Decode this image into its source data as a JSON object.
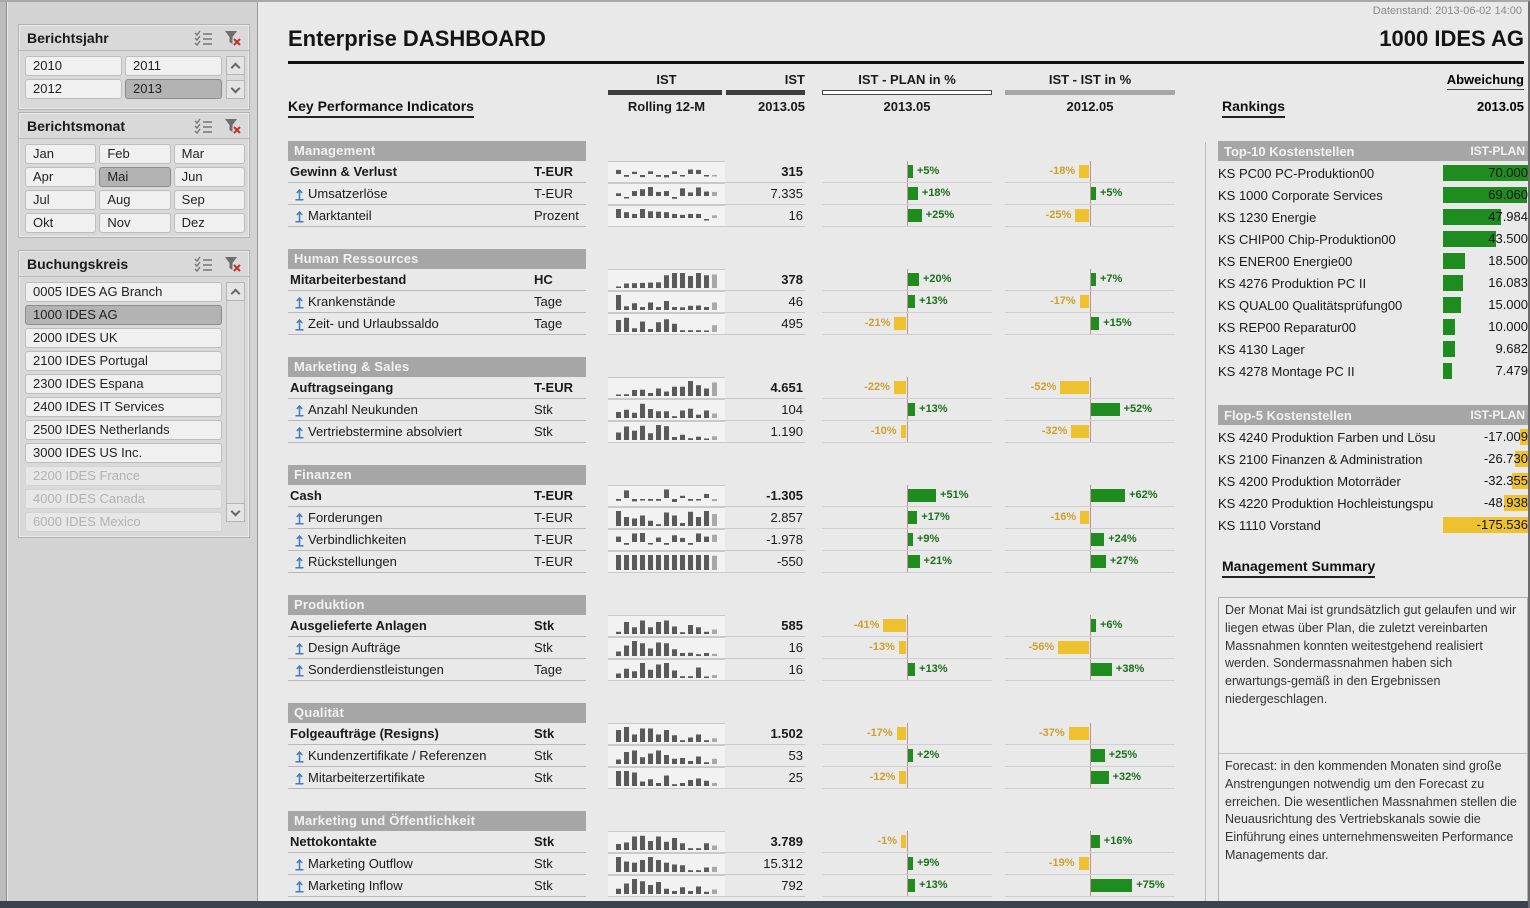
{
  "meta": {
    "datenstand": "Datenstand: 2013-06-02 14:00",
    "title": "Enterprise DASHBOARD",
    "company": "1000 IDES AG"
  },
  "colors": {
    "positive_green": "#1e8c1e",
    "negative_amber": "#eec22f",
    "section_gray": "#a6a6a6",
    "spark_dark": "#5a5a5a",
    "spark_light": "#a8a8a8"
  },
  "slicers": {
    "berichtsjahr": {
      "title": "Berichtsjahr",
      "items": [
        {
          "label": "2010",
          "selected": false,
          "disabled": false
        },
        {
          "label": "2011",
          "selected": false,
          "disabled": false
        },
        {
          "label": "2012",
          "selected": false,
          "disabled": false
        },
        {
          "label": "2013",
          "selected": true,
          "disabled": false
        }
      ]
    },
    "berichtsmonat": {
      "title": "Berichtsmonat",
      "items": [
        {
          "label": "Jan",
          "selected": false,
          "disabled": false
        },
        {
          "label": "Feb",
          "selected": false,
          "disabled": false
        },
        {
          "label": "Mar",
          "selected": false,
          "disabled": false
        },
        {
          "label": "Apr",
          "selected": false,
          "disabled": false
        },
        {
          "label": "Mai",
          "selected": true,
          "disabled": false
        },
        {
          "label": "Jun",
          "selected": false,
          "disabled": false
        },
        {
          "label": "Jul",
          "selected": false,
          "disabled": false
        },
        {
          "label": "Aug",
          "selected": false,
          "disabled": false
        },
        {
          "label": "Sep",
          "selected": false,
          "disabled": false
        },
        {
          "label": "Okt",
          "selected": false,
          "disabled": false
        },
        {
          "label": "Nov",
          "selected": false,
          "disabled": false
        },
        {
          "label": "Dez",
          "selected": false,
          "disabled": false
        }
      ]
    },
    "buchungskreis": {
      "title": "Buchungskreis",
      "items": [
        {
          "label": "0005 IDES AG Branch",
          "selected": false,
          "disabled": false
        },
        {
          "label": "1000 IDES AG",
          "selected": true,
          "disabled": false
        },
        {
          "label": "2000 IDES UK",
          "selected": false,
          "disabled": false
        },
        {
          "label": "2100 IDES Portugal",
          "selected": false,
          "disabled": false
        },
        {
          "label": "2300 IDES Espana",
          "selected": false,
          "disabled": false
        },
        {
          "label": "2400 IDES IT Services",
          "selected": false,
          "disabled": false
        },
        {
          "label": "2500 IDES Netherlands",
          "selected": false,
          "disabled": false
        },
        {
          "label": "3000 IDES US Inc.",
          "selected": false,
          "disabled": false
        },
        {
          "label": "2200 IDES France",
          "selected": false,
          "disabled": true
        },
        {
          "label": "4000 IDES Canada",
          "selected": false,
          "disabled": true
        },
        {
          "label": "6000 IDES Mexico",
          "selected": false,
          "disabled": true
        }
      ]
    }
  },
  "kpi_header": {
    "kpi_title": "Key Performance Indicators",
    "ist1": "IST",
    "ist1_period": "Rolling 12-M",
    "ist2": "IST",
    "ist2_period": "2013.05",
    "plan": "IST - PLAN in %",
    "plan_period": "2013.05",
    "yoy": "IST - IST in %",
    "yoy_period": "2012.05",
    "rankings_title": "Rankings",
    "abweichung": "Abweichung",
    "abweichung_period": "2013.05"
  },
  "sections": [
    {
      "title": "Management",
      "rows": [
        {
          "label": "Gewinn & Verlust",
          "unit": "T-EUR",
          "parent": true,
          "value": "315",
          "plan_pct": 5,
          "plan_label": "+5%",
          "yoy_pct": -18,
          "yoy_label": "-18%",
          "spark": [
            0.45,
            -0.3,
            0.25,
            -0.35,
            0.3,
            -0.3,
            -0.4,
            0.3,
            -0.25,
            0.5,
            0.45,
            -0.2,
            -0.25
          ]
        },
        {
          "label": "Umsatzerlöse",
          "unit": "T-EUR",
          "parent": false,
          "value": "7.335",
          "plan_pct": 18,
          "plan_label": "+18%",
          "yoy_pct": 5,
          "yoy_label": "+5%",
          "spark": [
            0.3,
            -0.25,
            0.55,
            0.75,
            1.0,
            0.45,
            0.55,
            -0.3,
            0.85,
            0.4,
            0.95,
            0.5,
            0.45
          ]
        },
        {
          "label": "Marktanteil",
          "unit": "Prozent",
          "parent": false,
          "value": "16",
          "plan_pct": 25,
          "plan_label": "+25%",
          "yoy_pct": -25,
          "yoy_label": "-25%",
          "spark": [
            1.0,
            0.65,
            0.45,
            1.0,
            0.75,
            0.7,
            0.65,
            0.45,
            0.35,
            0.45,
            0.45,
            -0.2,
            0.3
          ]
        }
      ]
    },
    {
      "title": "Human Ressources",
      "rows": [
        {
          "label": "Mitarbeiterbestand",
          "unit": "HC",
          "parent": true,
          "value": "378",
          "plan_pct": 20,
          "plan_label": "+20%",
          "yoy_pct": 7,
          "yoy_label": "+7%",
          "spark": [
            0.08,
            0.3,
            0.32,
            0.34,
            0.36,
            0.38,
            0.85,
            1.0,
            1.0,
            0.8,
            1.0,
            0.85,
            0.9
          ]
        },
        {
          "label": "Krankenstände",
          "unit": "Tage",
          "parent": false,
          "value": "46",
          "plan_pct": 13,
          "plan_label": "+13%",
          "yoy_pct": -17,
          "yoy_label": "-17%",
          "spark": [
            1.0,
            0.25,
            0.45,
            0.2,
            0.5,
            0.2,
            0.6,
            0.2,
            0.18,
            0.28,
            0.3,
            0.2,
            0.5
          ]
        },
        {
          "label": "Zeit- und Urlaubssaldo",
          "unit": "Tage",
          "parent": false,
          "value": "495",
          "plan_pct": -21,
          "plan_label": "-21%",
          "yoy_pct": 15,
          "yoy_label": "+15%",
          "spark": [
            0.8,
            0.95,
            0.25,
            0.7,
            0.2,
            0.65,
            0.85,
            0.55,
            0.12,
            0.12,
            0.12,
            0.1,
            0.45
          ]
        }
      ]
    },
    {
      "title": "Marketing & Sales",
      "rows": [
        {
          "label": "Auftragseingang",
          "unit": "T-EUR",
          "parent": true,
          "value": "4.651",
          "plan_pct": -22,
          "plan_label": "-22%",
          "yoy_pct": -52,
          "yoy_label": "-52%",
          "spark": [
            0.1,
            0.12,
            0.4,
            0.42,
            0.2,
            0.5,
            0.3,
            0.62,
            0.62,
            1.0,
            0.72,
            0.5,
            0.9
          ]
        },
        {
          "label": "Anzahl Neukunden",
          "unit": "Stk",
          "parent": false,
          "value": "104",
          "plan_pct": 13,
          "plan_label": "+13%",
          "yoy_pct": 52,
          "yoy_label": "+52%",
          "spark": [
            0.4,
            0.55,
            0.35,
            0.95,
            0.6,
            0.45,
            0.45,
            0.12,
            0.5,
            0.62,
            0.22,
            0.5,
            0.3
          ]
        },
        {
          "label": "Vertriebstermine absolviert",
          "unit": "Stk",
          "parent": false,
          "value": "1.190",
          "plan_pct": -10,
          "plan_label": "-10%",
          "yoy_pct": -32,
          "yoy_label": "-32%",
          "spark": [
            0.5,
            0.9,
            0.62,
            0.95,
            0.45,
            1.0,
            0.92,
            0.2,
            0.35,
            0.12,
            0.22,
            0.1,
            0.25
          ]
        }
      ]
    },
    {
      "title": "Finanzen",
      "rows": [
        {
          "label": "Cash",
          "unit": "T-EUR",
          "parent": true,
          "value": "-1.305",
          "plan_pct": 51,
          "plan_label": "+51%",
          "yoy_pct": 62,
          "yoy_label": "+62%",
          "spark": [
            -0.3,
            0.85,
            -0.4,
            -0.2,
            -0.3,
            -0.3,
            0.95,
            -0.5,
            0.25,
            -0.3,
            -0.2,
            0.45,
            -0.35
          ]
        },
        {
          "label": "Forderungen",
          "unit": "T-EUR",
          "parent": false,
          "value": "2.857",
          "plan_pct": 17,
          "plan_label": "+17%",
          "yoy_pct": -16,
          "yoy_label": "-16%",
          "spark": [
            1.0,
            0.6,
            0.5,
            0.7,
            0.35,
            0.12,
            0.9,
            0.7,
            0.2,
            0.95,
            0.6,
            1.0,
            0.8
          ]
        },
        {
          "label": "Verbindlichkeiten",
          "unit": "T-EUR",
          "parent": false,
          "value": "-1.978",
          "plan_pct": 9,
          "plan_label": "+9%",
          "yoy_pct": 24,
          "yoy_label": "+24%",
          "spark": [
            0.6,
            -0.3,
            0.95,
            1.0,
            -0.25,
            0.5,
            -0.3,
            0.75,
            0.45,
            -0.3,
            0.95,
            0.6,
            0.8
          ]
        },
        {
          "label": "Rückstellungen",
          "unit": "T-EUR",
          "parent": false,
          "value": "-550",
          "plan_pct": 21,
          "plan_label": "+21%",
          "yoy_pct": 27,
          "yoy_label": "+27%",
          "spark": [
            1,
            1,
            1,
            1,
            1,
            1,
            1,
            1,
            1,
            1,
            1,
            1,
            0.95
          ]
        }
      ]
    },
    {
      "title": "Produktion",
      "rows": [
        {
          "label": "Ausgelieferte Anlagen",
          "unit": "Stk",
          "parent": true,
          "value": "585",
          "plan_pct": -41,
          "plan_label": "-41%",
          "yoy_pct": 6,
          "yoy_label": "+6%",
          "spark": [
            0.15,
            0.8,
            0.45,
            0.9,
            0.45,
            0.8,
            0.9,
            0.5,
            0.12,
            0.6,
            0.45,
            0.15,
            0.3
          ]
        },
        {
          "label": "Design Aufträge",
          "unit": "Stk",
          "parent": false,
          "value": "16",
          "plan_pct": -13,
          "plan_label": "-13%",
          "yoy_pct": -56,
          "yoy_label": "-56%",
          "spark": [
            0.3,
            0.7,
            1.0,
            0.85,
            0.5,
            0.9,
            0.85,
            0.45,
            0.2,
            0.22,
            0.12,
            0.2,
            0.15
          ]
        },
        {
          "label": "Sonderdienstleistungen",
          "unit": "Tage",
          "parent": false,
          "value": "16",
          "plan_pct": 13,
          "plan_label": "+13%",
          "yoy_pct": 38,
          "yoy_label": "+38%",
          "spark": [
            0.3,
            0.62,
            0.45,
            1.0,
            0.55,
            0.9,
            1.0,
            0.5,
            0.12,
            0.12,
            0.7,
            0.1,
            0.2
          ]
        }
      ]
    },
    {
      "title": "Qualität",
      "rows": [
        {
          "label": "Folgeaufträge (Resigns)",
          "unit": "Stk",
          "parent": true,
          "value": "1.502",
          "plan_pct": -17,
          "plan_label": "-17%",
          "yoy_pct": -37,
          "yoy_label": "-37%",
          "spark": [
            0.8,
            1.0,
            0.5,
            0.9,
            0.9,
            0.5,
            0.8,
            0.45,
            0.12,
            0.3,
            0.5,
            0.12,
            0.25
          ]
        },
        {
          "label": "Kundenzertifikate / Referenzen",
          "unit": "Stk",
          "parent": false,
          "value": "53",
          "plan_pct": 2,
          "plan_label": "+2%",
          "yoy_pct": 25,
          "yoy_label": "+25%",
          "spark": [
            0.3,
            0.8,
            0.9,
            0.45,
            0.7,
            0.9,
            0.6,
            0.35,
            0.4,
            0.2,
            0.5,
            0.12,
            0.35
          ]
        },
        {
          "label": "Mitarbeiterzertifikate",
          "unit": "Stk",
          "parent": false,
          "value": "25",
          "plan_pct": -12,
          "plan_label": "-12%",
          "yoy_pct": 32,
          "yoy_label": "+32%",
          "spark": [
            1.0,
            1.0,
            0.9,
            0.3,
            0.45,
            0.2,
            0.7,
            0.12,
            0.2,
            0.4,
            0.5,
            0.35,
            0.2
          ]
        }
      ]
    },
    {
      "title": "Marketing und Öffentlichkeit",
      "rows": [
        {
          "label": "Nettokontakte",
          "unit": "Stk",
          "parent": true,
          "value": "3.789",
          "plan_pct": -1,
          "plan_label": "-1%",
          "yoy_pct": 16,
          "yoy_label": "+16%",
          "spark": [
            0.4,
            0.5,
            0.9,
            0.95,
            0.6,
            0.9,
            0.55,
            0.8,
            0.45,
            0.12,
            0.12,
            0.45,
            0.3
          ]
        },
        {
          "label": "Marketing Outflow",
          "unit": "Stk",
          "parent": false,
          "value": "15.312",
          "plan_pct": 9,
          "plan_label": "+9%",
          "yoy_pct": -19,
          "yoy_label": "-19%",
          "spark": [
            1.0,
            0.7,
            0.62,
            0.8,
            1.0,
            0.8,
            0.62,
            0.5,
            0.45,
            0.12,
            0.12,
            0.3,
            0.35
          ]
        },
        {
          "label": "Marketing Inflow",
          "unit": "Stk",
          "parent": false,
          "value": "792",
          "plan_pct": 13,
          "plan_label": "+13%",
          "yoy_pct": 75,
          "yoy_label": "+75%",
          "spark": [
            0.35,
            0.7,
            1.0,
            0.85,
            0.6,
            0.8,
            0.35,
            0.2,
            0.45,
            0.2,
            0.5,
            0.15,
            0.3
          ]
        }
      ]
    }
  ],
  "rankings": {
    "top": {
      "title": "Top-10 Kostenstellen",
      "col": "IST-PLAN",
      "max": 70000,
      "rows": [
        {
          "label": "KS PC00 PC-Produktion00",
          "value": "70.000",
          "num": 70000
        },
        {
          "label": "KS 1000 Corporate Services",
          "value": "69.060",
          "num": 69060
        },
        {
          "label": "KS 1230 Energie",
          "value": "47.984",
          "num": 47984
        },
        {
          "label": "KS CHIP00 Chip-Produktion00",
          "value": "43.500",
          "num": 43500
        },
        {
          "label": "KS ENER00 Energie00",
          "value": "18.500",
          "num": 18500
        },
        {
          "label": "KS 4276 Produktion PC II",
          "value": "16.083",
          "num": 16083
        },
        {
          "label": "KS QUAL00 Qualitätsprüfung00",
          "value": "15.000",
          "num": 15000
        },
        {
          "label": "KS REP00 Reparatur00",
          "value": "10.000",
          "num": 10000
        },
        {
          "label": "KS 4130 Lager",
          "value": "9.682",
          "num": 9682
        },
        {
          "label": "KS 4278 Montage PC II",
          "value": "7.479",
          "num": 7479
        }
      ]
    },
    "flop": {
      "title": "Flop-5 Kostenstellen",
      "col": "IST-PLAN",
      "max": 175536,
      "rows": [
        {
          "label": "KS 4240 Produktion Farben und Lösu",
          "value": "-17.009",
          "num": -17009
        },
        {
          "label": "KS 2100 Finanzen & Administration",
          "value": "-26.730",
          "num": -26730
        },
        {
          "label": "KS 4200 Produktion Motorräder",
          "value": "-32.355",
          "num": -32355
        },
        {
          "label": "KS 4220 Produktion Hochleistungspu",
          "value": "-48.938",
          "num": -48938
        },
        {
          "label": "KS 1110 Vorstand",
          "value": "-175.536",
          "num": -175536
        }
      ]
    }
  },
  "summary": {
    "title": "Management Summary",
    "p1": "Der Monat Mai ist grundsätzlich gut gelaufen und wir liegen etwas über Plan, die zuletzt vereinbarten Massnahmen konnten weitestgehend realisiert werden. Sondermassnahmen haben sich erwartungs-gemäß in den Ergebnissen niedergeschlagen.",
    "p2": "Forecast: in den kommenden Monaten sind große Anstrengungen notwendig um den Forecast zu erreichen. Die wesentlichen Massnahmen stellen die Neuausrichtung des Vertriebskanals sowie die Einführung eines unternehmensweiten Performance Managements dar."
  }
}
